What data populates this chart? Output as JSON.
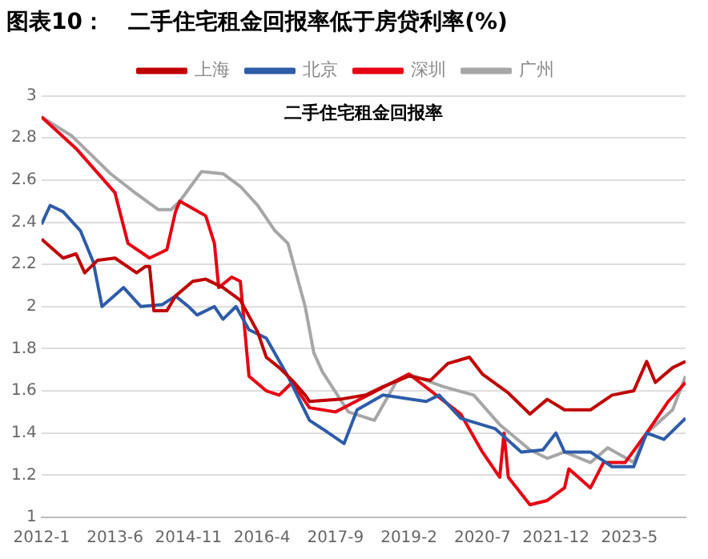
{
  "chart_data": {
    "type": "line",
    "title": "图表10：   二手住宅租金回报率低于房贷利率(%)",
    "subtitle": "二手住宅租金回报率",
    "xlim": [
      "2012-01",
      "2024-06"
    ],
    "xticks": [
      {
        "value": "2012-01",
        "label": "2012-1"
      },
      {
        "value": "2013-06",
        "label": "2013-6"
      },
      {
        "value": "2014-11",
        "label": "2014-11"
      },
      {
        "value": "2016-04",
        "label": "2016-4"
      },
      {
        "value": "2017-09",
        "label": "2017-9"
      },
      {
        "value": "2019-02",
        "label": "2019-2"
      },
      {
        "value": "2020-07",
        "label": "2020-7"
      },
      {
        "value": "2021-12",
        "label": "2021-12"
      },
      {
        "value": "2023-05",
        "label": "2023-5"
      }
    ],
    "ylim": [
      1,
      3
    ],
    "yticks": [
      1,
      1.2,
      1.4,
      1.6,
      1.8,
      2,
      2.2,
      2.4,
      2.6,
      2.8,
      3
    ],
    "grid": "y",
    "legend": "top",
    "marker": "none",
    "line_style": "solid",
    "series": [
      {
        "name": "上海",
        "color": "#c00000",
        "x": [
          "2012-01",
          "2012-06",
          "2012-09",
          "2012-11",
          "2013-02",
          "2013-06",
          "2013-11",
          "2014-01",
          "2014-02",
          "2014-03",
          "2014-06",
          "2014-08",
          "2014-12",
          "2015-03",
          "2015-07",
          "2015-11",
          "2016-03",
          "2016-05",
          "2016-08",
          "2016-11",
          "2017-02",
          "2017-03",
          "2017-10",
          "2018-04",
          "2018-08",
          "2019-02",
          "2019-07",
          "2019-11",
          "2020-04",
          "2020-07",
          "2021-01",
          "2021-06",
          "2021-10",
          "2022-02",
          "2022-08",
          "2023-01",
          "2023-06",
          "2023-09",
          "2023-11",
          "2024-03",
          "2024-06"
        ],
        "values": [
          2.32,
          2.23,
          2.25,
          2.16,
          2.22,
          2.23,
          2.16,
          2.19,
          2.19,
          1.98,
          1.98,
          2.05,
          2.12,
          2.13,
          2.09,
          2.03,
          1.88,
          1.76,
          1.71,
          1.65,
          1.58,
          1.55,
          1.56,
          1.58,
          1.62,
          1.67,
          1.65,
          1.73,
          1.76,
          1.68,
          1.59,
          1.49,
          1.56,
          1.51,
          1.51,
          1.58,
          1.6,
          1.74,
          1.64,
          1.71,
          1.74
        ]
      },
      {
        "name": "北京",
        "color": "#2e5ca8",
        "x": [
          "2012-01",
          "2012-03",
          "2012-06",
          "2012-10",
          "2013-01",
          "2013-03",
          "2013-08",
          "2013-12",
          "2014-05",
          "2014-08",
          "2014-11",
          "2015-01",
          "2015-05",
          "2015-07",
          "2015-10",
          "2016-01",
          "2016-05",
          "2016-10",
          "2017-03",
          "2017-06",
          "2017-11",
          "2018-02",
          "2018-08",
          "2019-06",
          "2019-09",
          "2020-02",
          "2020-10",
          "2021-04",
          "2021-09",
          "2021-12",
          "2022-02",
          "2022-08",
          "2023-01",
          "2023-06",
          "2023-09",
          "2024-01",
          "2024-06"
        ],
        "values": [
          2.39,
          2.48,
          2.45,
          2.36,
          2.21,
          2,
          2.09,
          2,
          2.01,
          2.05,
          2,
          1.96,
          2,
          1.94,
          2,
          1.89,
          1.85,
          1.67,
          1.46,
          1.42,
          1.35,
          1.51,
          1.58,
          1.55,
          1.58,
          1.47,
          1.42,
          1.31,
          1.32,
          1.4,
          1.31,
          1.31,
          1.24,
          1.24,
          1.4,
          1.37,
          1.47
        ]
      },
      {
        "name": "深圳",
        "color": "#e60012",
        "x": [
          "2012-01",
          "2012-09",
          "2013-06",
          "2013-09",
          "2014-02",
          "2014-06",
          "2014-08",
          "2014-09",
          "2015-03",
          "2015-05",
          "2015-06",
          "2015-09",
          "2015-11",
          "2016-01",
          "2016-05",
          "2016-08",
          "2016-11",
          "2017-03",
          "2017-09",
          "2019-02",
          "2020-02",
          "2020-07",
          "2020-11",
          "2020-12",
          "2021-01",
          "2021-06",
          "2021-10",
          "2022-02",
          "2022-03",
          "2022-08",
          "2022-11",
          "2023-04",
          "2023-09",
          "2024-02",
          "2024-06"
        ],
        "values": [
          2.9,
          2.75,
          2.54,
          2.3,
          2.23,
          2.27,
          2.45,
          2.5,
          2.43,
          2.3,
          2.09,
          2.14,
          2.12,
          1.67,
          1.6,
          1.58,
          1.64,
          1.52,
          1.5,
          1.68,
          1.49,
          1.31,
          1.19,
          1.4,
          1.19,
          1.06,
          1.08,
          1.14,
          1.23,
          1.14,
          1.26,
          1.26,
          1.4,
          1.55,
          1.64
        ]
      },
      {
        "name": "广州",
        "color": "#a6a6a6",
        "x": [
          "2012-01",
          "2012-08",
          "2013-05",
          "2013-10",
          "2014-04",
          "2014-07",
          "2014-09",
          "2015-02",
          "2015-07",
          "2015-11",
          "2016-03",
          "2016-07",
          "2016-10",
          "2017-02",
          "2017-04",
          "2017-06",
          "2017-12",
          "2018-06",
          "2018-11",
          "2019-02",
          "2019-10",
          "2020-05",
          "2020-11",
          "2021-06",
          "2021-10",
          "2022-02",
          "2022-08",
          "2022-12",
          "2023-06",
          "2023-09",
          "2024-03",
          "2024-06"
        ],
        "values": [
          2.9,
          2.81,
          2.63,
          2.55,
          2.46,
          2.46,
          2.5,
          2.64,
          2.63,
          2.57,
          2.48,
          2.36,
          2.3,
          2,
          1.78,
          1.69,
          1.5,
          1.46,
          1.64,
          1.68,
          1.62,
          1.58,
          1.44,
          1.32,
          1.28,
          1.31,
          1.26,
          1.33,
          1.26,
          1.4,
          1.51,
          1.67
        ]
      }
    ]
  }
}
